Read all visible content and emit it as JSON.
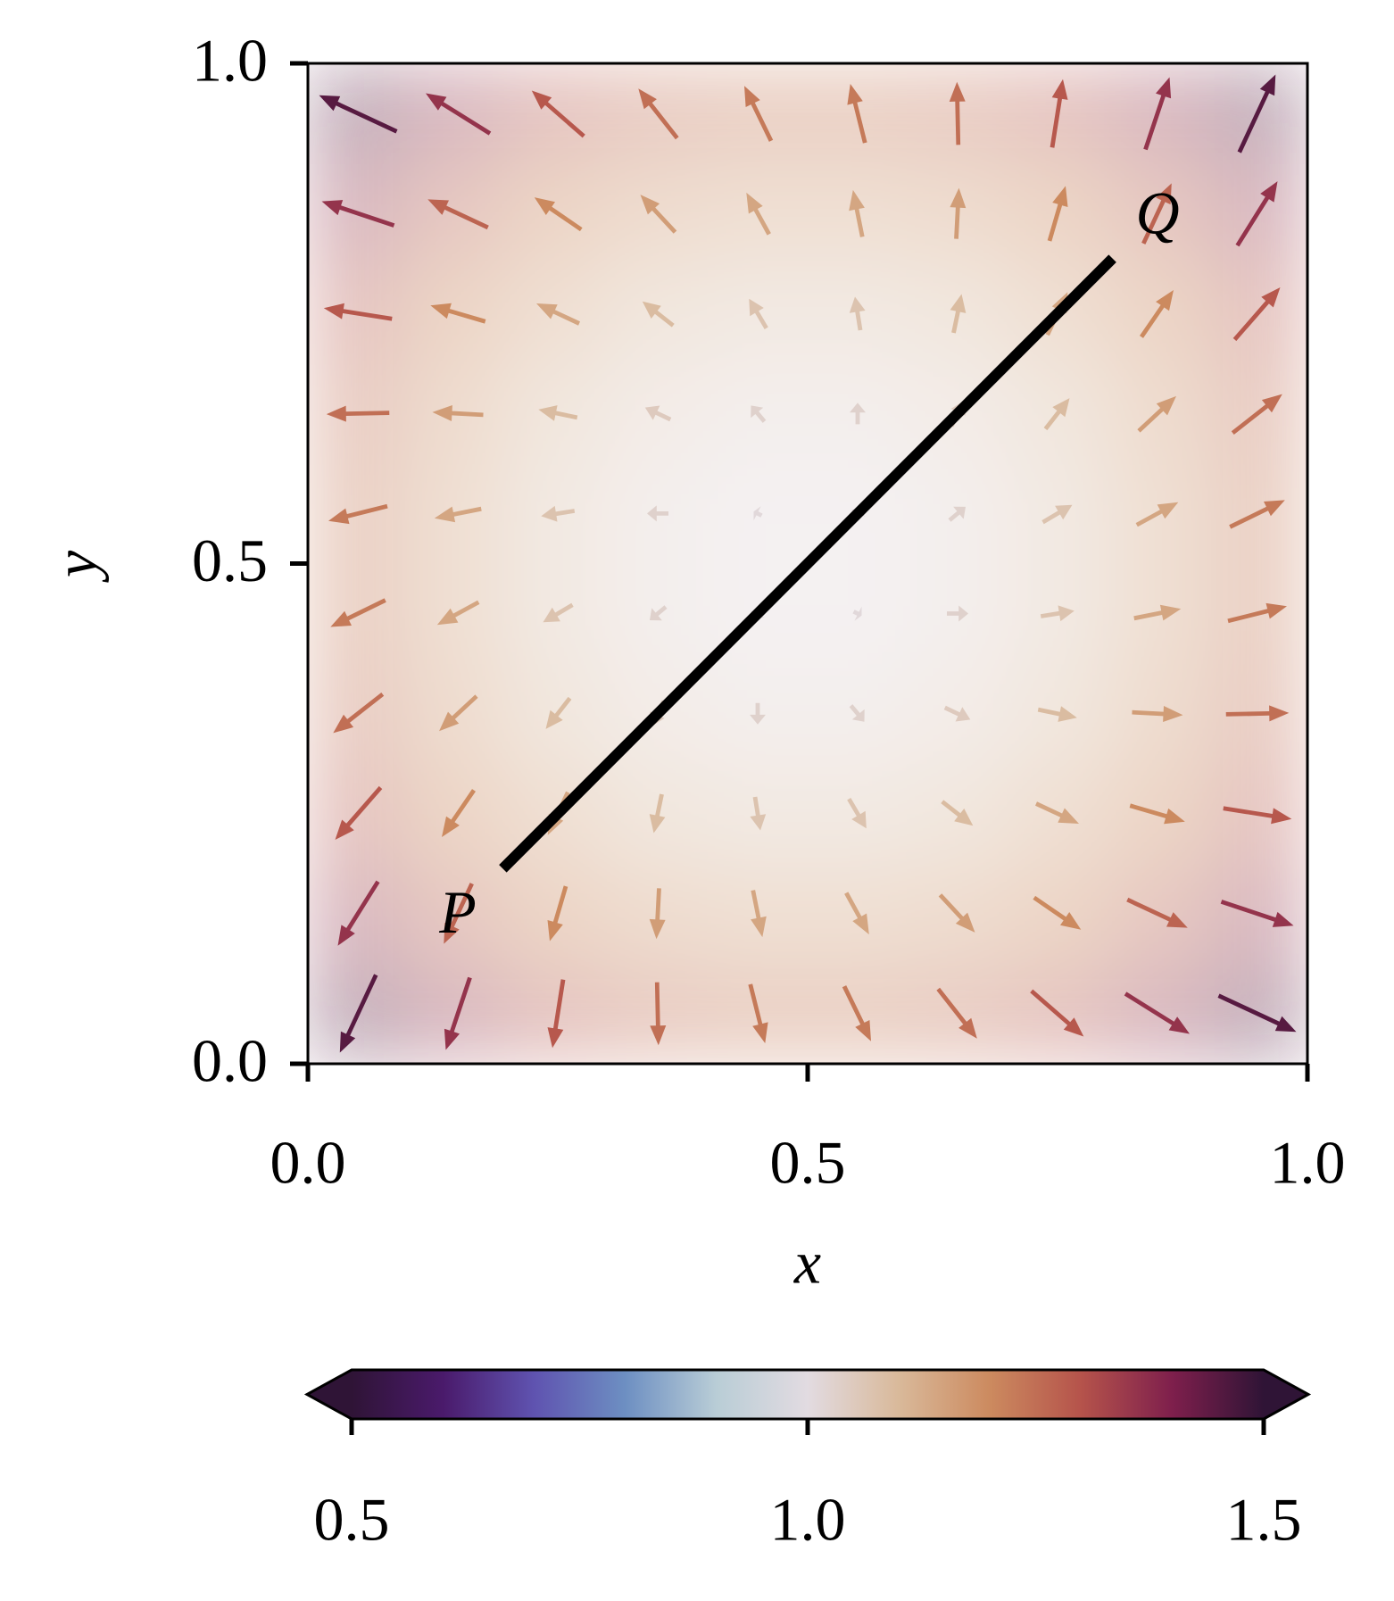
{
  "chart_data": {
    "type": "quiver",
    "xlabel": "x",
    "ylabel": "y",
    "xlim": [
      0,
      1
    ],
    "ylim": [
      0,
      1
    ],
    "xticks": [
      {
        "value": 0,
        "label": "0.0"
      },
      0.5,
      {
        "value": 1,
        "label": "1.0"
      }
    ],
    "yticks": [
      {
        "value": 0,
        "label": "0.0"
      },
      0.5,
      {
        "value": 1,
        "label": "1.0"
      }
    ],
    "x": [
      0.05,
      0.15,
      0.25,
      0.35,
      0.45,
      0.55,
      0.65,
      0.75,
      0.85,
      0.95
    ],
    "y": [
      0.05,
      0.15,
      0.25,
      0.35,
      0.45,
      0.55,
      0.65,
      0.75,
      0.85,
      0.95
    ],
    "u": [
      [
        -0.27,
        -0.18,
        -0.08,
        0.01,
        0.11,
        0.2,
        0.29,
        0.39,
        0.48,
        0.58
      ],
      [
        -0.3,
        -0.21,
        -0.12,
        -0.02,
        0.07,
        0.17,
        0.26,
        0.35,
        0.45,
        0.54
      ],
      [
        -0.34,
        -0.24,
        -0.15,
        -0.06,
        0.04,
        0.13,
        0.23,
        0.32,
        0.41,
        0.51
      ],
      [
        -0.37,
        -0.28,
        -0.18,
        -0.09,
        0,
        0.1,
        0.19,
        0.29,
        0.38,
        0.47
      ],
      [
        -0.41,
        -0.31,
        -0.22,
        -0.12,
        -0.03,
        0.06,
        0.16,
        0.25,
        0.35,
        0.44
      ],
      [
        -0.44,
        -0.35,
        -0.25,
        -0.16,
        -0.06,
        0.03,
        0.12,
        0.22,
        0.31,
        0.41
      ],
      [
        -0.47,
        -0.38,
        -0.29,
        -0.19,
        -0.1,
        0,
        0.09,
        0.18,
        0.28,
        0.37
      ],
      [
        -0.51,
        -0.41,
        -0.32,
        -0.23,
        -0.13,
        -0.04,
        0.06,
        0.15,
        0.24,
        0.34
      ],
      [
        -0.54,
        -0.45,
        -0.35,
        -0.26,
        -0.17,
        -0.07,
        0.02,
        0.12,
        0.21,
        0.3
      ],
      [
        -0.58,
        -0.48,
        -0.39,
        -0.29,
        -0.2,
        -0.11,
        -0.01,
        0.08,
        0.18,
        0.27
      ]
    ],
    "v": [
      [
        -0.58,
        -0.54,
        -0.51,
        -0.47,
        -0.44,
        -0.41,
        -0.37,
        -0.34,
        -0.3,
        -0.27
      ],
      [
        -0.48,
        -0.45,
        -0.41,
        -0.38,
        -0.35,
        -0.31,
        -0.28,
        -0.24,
        -0.21,
        -0.18
      ],
      [
        -0.39,
        -0.35,
        -0.32,
        -0.29,
        -0.25,
        -0.22,
        -0.18,
        -0.15,
        -0.12,
        -0.08
      ],
      [
        -0.29,
        -0.26,
        -0.23,
        -0.19,
        -0.16,
        -0.12,
        -0.09,
        -0.06,
        -0.02,
        0.01
      ],
      [
        -0.2,
        -0.17,
        -0.13,
        -0.1,
        -0.06,
        -0.03,
        0,
        0.04,
        0.07,
        0.11
      ],
      [
        -0.11,
        -0.07,
        -0.04,
        0,
        0.03,
        0.06,
        0.1,
        0.13,
        0.17,
        0.2
      ],
      [
        -0.01,
        0.02,
        0.06,
        0.09,
        0.12,
        0.16,
        0.19,
        0.23,
        0.26,
        0.29
      ],
      [
        0.08,
        0.12,
        0.15,
        0.18,
        0.22,
        0.25,
        0.29,
        0.32,
        0.35,
        0.39
      ],
      [
        0.18,
        0.21,
        0.24,
        0.28,
        0.31,
        0.35,
        0.38,
        0.41,
        0.45,
        0.48
      ],
      [
        0.27,
        0.3,
        0.34,
        0.37,
        0.41,
        0.44,
        0.47,
        0.51,
        0.54,
        0.58
      ]
    ],
    "c": [
      [
        1.45,
        1.36,
        1.29,
        1.25,
        1.23,
        1.23,
        1.25,
        1.29,
        1.36,
        1.45
      ],
      [
        1.36,
        1.27,
        1.2,
        1.16,
        1.14,
        1.14,
        1.16,
        1.2,
        1.27,
        1.36
      ],
      [
        1.29,
        1.2,
        1.14,
        1.09,
        1.07,
        1.07,
        1.09,
        1.14,
        1.2,
        1.29
      ],
      [
        1.25,
        1.16,
        1.09,
        1.05,
        1.03,
        1.03,
        1.05,
        1.09,
        1.16,
        1.25
      ],
      [
        1.23,
        1.14,
        1.07,
        1.03,
        1.01,
        1.01,
        1.03,
        1.07,
        1.14,
        1.23
      ],
      [
        1.23,
        1.14,
        1.07,
        1.03,
        1.01,
        1.01,
        1.03,
        1.07,
        1.14,
        1.23
      ],
      [
        1.25,
        1.16,
        1.09,
        1.05,
        1.03,
        1.03,
        1.05,
        1.09,
        1.16,
        1.25
      ],
      [
        1.29,
        1.2,
        1.14,
        1.09,
        1.07,
        1.07,
        1.09,
        1.14,
        1.2,
        1.29
      ],
      [
        1.36,
        1.27,
        1.2,
        1.16,
        1.14,
        1.14,
        1.16,
        1.2,
        1.27,
        1.36
      ],
      [
        1.45,
        1.36,
        1.29,
        1.25,
        1.23,
        1.23,
        1.25,
        1.29,
        1.36,
        1.45
      ]
    ],
    "line": {
      "x": [
        0.195,
        0.805
      ],
      "y": [
        0.195,
        0.805
      ],
      "color": "#000000"
    },
    "annotations": [
      {
        "text": "P",
        "x": 0.15,
        "y": 0.145
      },
      {
        "text": "Q",
        "x": 0.85,
        "y": 0.844
      }
    ],
    "colorbar": {
      "lim": [
        0.5,
        1.5
      ],
      "ticks": [
        0.5,
        {
          "value": 1,
          "label": "1.0"
        },
        1.5
      ],
      "extend": "both",
      "colors": [
        "#2f1436",
        "#4a1a6b",
        "#5f53b0",
        "#6d8fc2",
        "#b9cdd6",
        "#e2dbe1",
        "#d9b99a",
        "#cc8a5f",
        "#b5534b",
        "#7e1f4c",
        "#2f1436"
      ]
    }
  }
}
